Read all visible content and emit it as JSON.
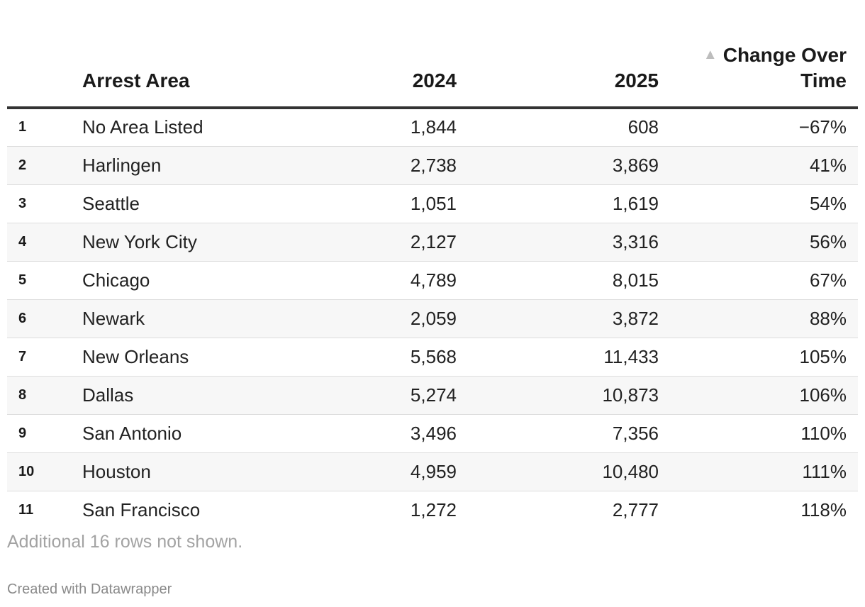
{
  "chart_data": {
    "type": "table",
    "columns": [
      "",
      "Arrest Area",
      "2024",
      "2025",
      "Change Over Time"
    ],
    "sort": {
      "column": "Change Over Time",
      "direction": "ascending",
      "icon": "sort-ascending-icon"
    },
    "rows": [
      {
        "rank": "1",
        "area": "No Area Listed",
        "y2024": "1,844",
        "y2025": "608",
        "change": "−67%"
      },
      {
        "rank": "2",
        "area": "Harlingen",
        "y2024": "2,738",
        "y2025": "3,869",
        "change": "41%"
      },
      {
        "rank": "3",
        "area": "Seattle",
        "y2024": "1,051",
        "y2025": "1,619",
        "change": "54%"
      },
      {
        "rank": "4",
        "area": "New York City",
        "y2024": "2,127",
        "y2025": "3,316",
        "change": "56%"
      },
      {
        "rank": "5",
        "area": "Chicago",
        "y2024": "4,789",
        "y2025": "8,015",
        "change": "67%"
      },
      {
        "rank": "6",
        "area": "Newark",
        "y2024": "2,059",
        "y2025": "3,872",
        "change": "88%"
      },
      {
        "rank": "7",
        "area": "New Orleans",
        "y2024": "5,568",
        "y2025": "11,433",
        "change": "105%"
      },
      {
        "rank": "8",
        "area": "Dallas",
        "y2024": "5,274",
        "y2025": "10,873",
        "change": "106%"
      },
      {
        "rank": "9",
        "area": "San Antonio",
        "y2024": "3,496",
        "y2025": "7,356",
        "change": "110%"
      },
      {
        "rank": "10",
        "area": "Houston",
        "y2024": "4,959",
        "y2025": "10,480",
        "change": "111%"
      },
      {
        "rank": "11",
        "area": "San Francisco",
        "y2024": "1,272",
        "y2025": "2,777",
        "change": "118%"
      }
    ],
    "notes": "Additional 16 rows not shown.",
    "credit": "Created with Datawrapper"
  },
  "header": {
    "col_area": "Arrest Area",
    "col_2024": "2024",
    "col_2025": "2025",
    "col_change_line1": "Change Over",
    "col_change_line2": "Time",
    "sort_glyph": "▲"
  }
}
